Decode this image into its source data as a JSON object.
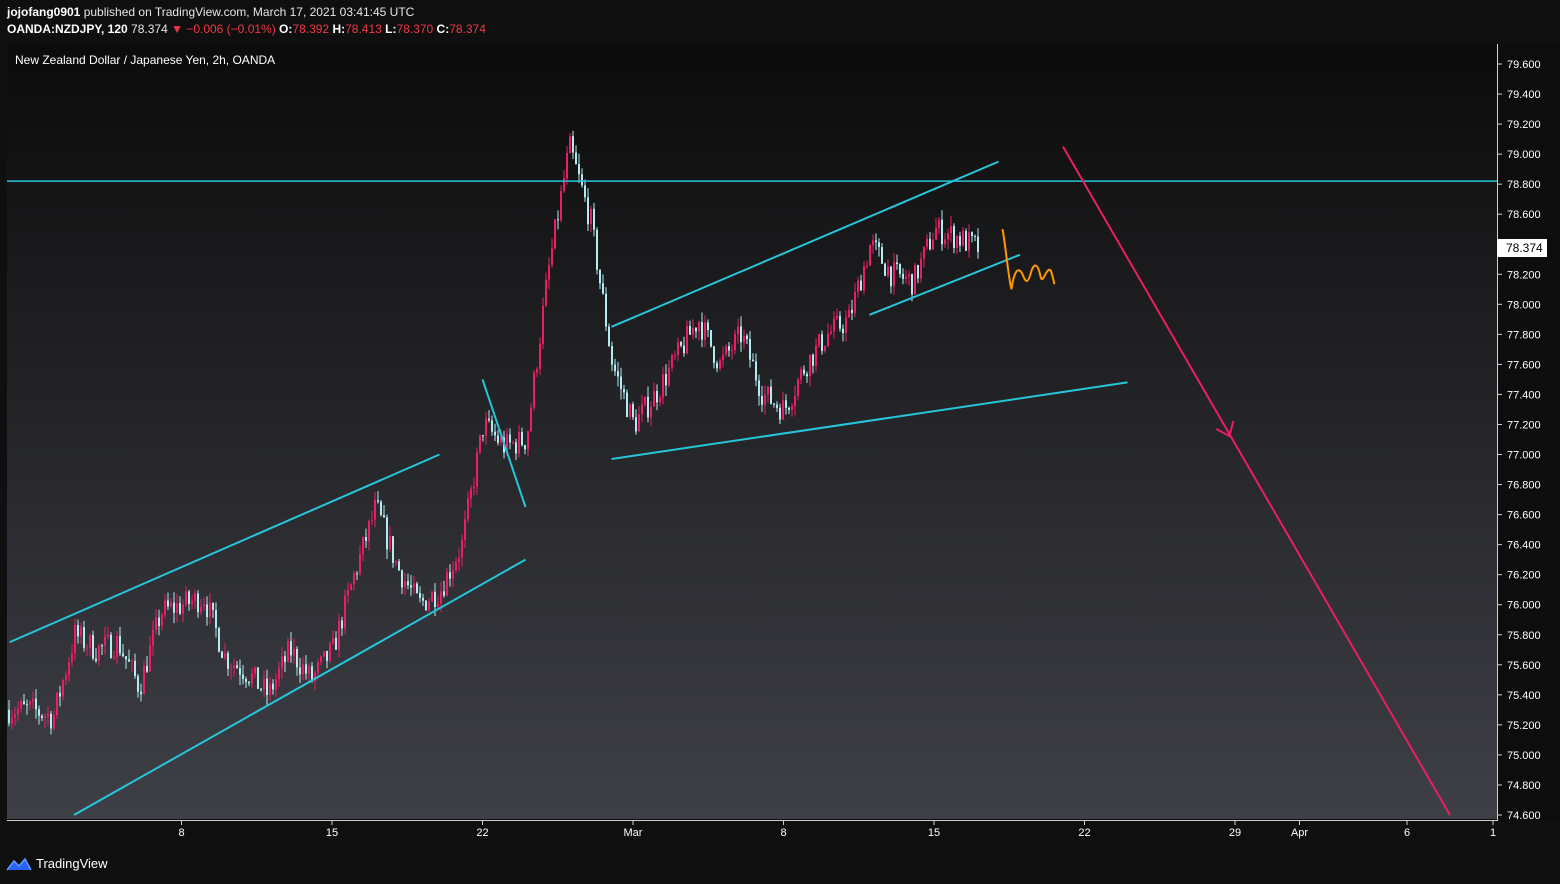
{
  "header": {
    "author": "jojofang0901",
    "published": "published on TradingView.com, March 17, 2021 03:41:45 UTC",
    "symbol": "OANDA:NZDJPY, 120",
    "last": "78.374",
    "change": "▼ −0.006 (−0.01%)",
    "o_label": "O:",
    "o_value": "78.392",
    "h_label": "H:",
    "h_value": "78.413",
    "l_label": "L:",
    "l_value": "78.370",
    "c_label": "C:",
    "c_value": "78.374"
  },
  "chart_title": "New Zealand Dollar / Japanese Yen, 2h, OANDA",
  "price_tag": "78.374",
  "footer": {
    "brand": "TradingView"
  },
  "colors": {
    "up": "#e91e63",
    "down": "#b2ebf2",
    "line": "#26c6da",
    "arrow": "#e91e63",
    "scribble": "#ff9800"
  },
  "chart_data": {
    "type": "candlestick",
    "title": "New Zealand Dollar / Japanese Yen, 2h, OANDA",
    "ylim": [
      74.6,
      79.6
    ],
    "y_ticks": [
      "74.600",
      "74.800",
      "75.000",
      "75.200",
      "75.400",
      "75.600",
      "75.800",
      "76.000",
      "76.200",
      "76.400",
      "76.600",
      "76.800",
      "77.000",
      "77.200",
      "77.400",
      "77.600",
      "77.800",
      "78.000",
      "78.200",
      "78.400",
      "78.600",
      "78.800",
      "79.000",
      "79.200",
      "79.400",
      "79.600"
    ],
    "x_ticks": [
      "8",
      "15",
      "22",
      "Mar",
      "8",
      "15",
      "22",
      "29",
      "Apr",
      "6",
      "1"
    ],
    "last_price": 78.374,
    "price_path": [
      {
        "date": "2021-02-01",
        "price": 75.3
      },
      {
        "date": "2021-02-02",
        "price": 75.25
      },
      {
        "date": "2021-02-03",
        "price": 75.8
      },
      {
        "date": "2021-02-04",
        "price": 75.7
      },
      {
        "date": "2021-02-05",
        "price": 75.75
      },
      {
        "date": "2021-02-06",
        "price": 75.45
      },
      {
        "date": "2021-02-07",
        "price": 75.95
      },
      {
        "date": "2021-02-08",
        "price": 76.0
      },
      {
        "date": "2021-02-09",
        "price": 76.05
      },
      {
        "date": "2021-02-10",
        "price": 75.65
      },
      {
        "date": "2021-02-11",
        "price": 75.55
      },
      {
        "date": "2021-02-12",
        "price": 75.4
      },
      {
        "date": "2021-02-13",
        "price": 75.7
      },
      {
        "date": "2021-02-14",
        "price": 75.5
      },
      {
        "date": "2021-02-15",
        "price": 75.7
      },
      {
        "date": "2021-02-16",
        "price": 76.2
      },
      {
        "date": "2021-02-17",
        "price": 76.65
      },
      {
        "date": "2021-02-18",
        "price": 76.25
      },
      {
        "date": "2021-02-19",
        "price": 76.0
      },
      {
        "date": "2021-02-20",
        "price": 76.1
      },
      {
        "date": "2021-02-21",
        "price": 76.4
      },
      {
        "date": "2021-02-22",
        "price": 77.2
      },
      {
        "date": "2021-02-23",
        "price": 77.05
      },
      {
        "date": "2021-02-24",
        "price": 77.1
      },
      {
        "date": "2021-02-25",
        "price": 78.2
      },
      {
        "date": "2021-02-26",
        "price": 79.05
      },
      {
        "date": "2021-02-27",
        "price": 78.55
      },
      {
        "date": "2021-02-28",
        "price": 77.6
      },
      {
        "date": "2021-03-01",
        "price": 77.2
      },
      {
        "date": "2021-03-02",
        "price": 77.4
      },
      {
        "date": "2021-03-03",
        "price": 77.65
      },
      {
        "date": "2021-03-04",
        "price": 77.9
      },
      {
        "date": "2021-03-05",
        "price": 77.6
      },
      {
        "date": "2021-03-06",
        "price": 77.8
      },
      {
        "date": "2021-03-07",
        "price": 77.4
      },
      {
        "date": "2021-03-08",
        "price": 77.3
      },
      {
        "date": "2021-03-09",
        "price": 77.6
      },
      {
        "date": "2021-03-10",
        "price": 77.8
      },
      {
        "date": "2021-03-11",
        "price": 77.9
      },
      {
        "date": "2021-03-12",
        "price": 78.4
      },
      {
        "date": "2021-03-13",
        "price": 78.2
      },
      {
        "date": "2021-03-14",
        "price": 78.15
      },
      {
        "date": "2021-03-15",
        "price": 78.5
      },
      {
        "date": "2021-03-16",
        "price": 78.45
      },
      {
        "date": "2021-03-17",
        "price": 78.374
      }
    ],
    "horizontal_line": 78.82,
    "trendlines": [
      {
        "x1": "2021-01-31",
        "y1": 75.75,
        "x2": "2021-02-20",
        "y2": 77.0
      },
      {
        "x1": "2021-02-03",
        "y1": 74.6,
        "x2": "2021-02-24",
        "y2": 76.3
      },
      {
        "x1": "2021-02-22",
        "y1": 77.5,
        "x2": "2021-02-24",
        "y2": 76.65
      },
      {
        "x1": "2021-02-28",
        "y1": 77.85,
        "x2": "2021-03-18",
        "y2": 78.95
      },
      {
        "x1": "2021-02-28",
        "y1": 76.97,
        "x2": "2021-03-24",
        "y2": 77.48
      },
      {
        "x1": "2021-03-12",
        "y1": 77.93,
        "x2": "2021-03-19",
        "y2": 78.33
      }
    ],
    "projection_arrow": {
      "x1": "2021-03-21",
      "y1": 79.05,
      "x2": "2021-04-08",
      "y2": 74.6
    }
  }
}
